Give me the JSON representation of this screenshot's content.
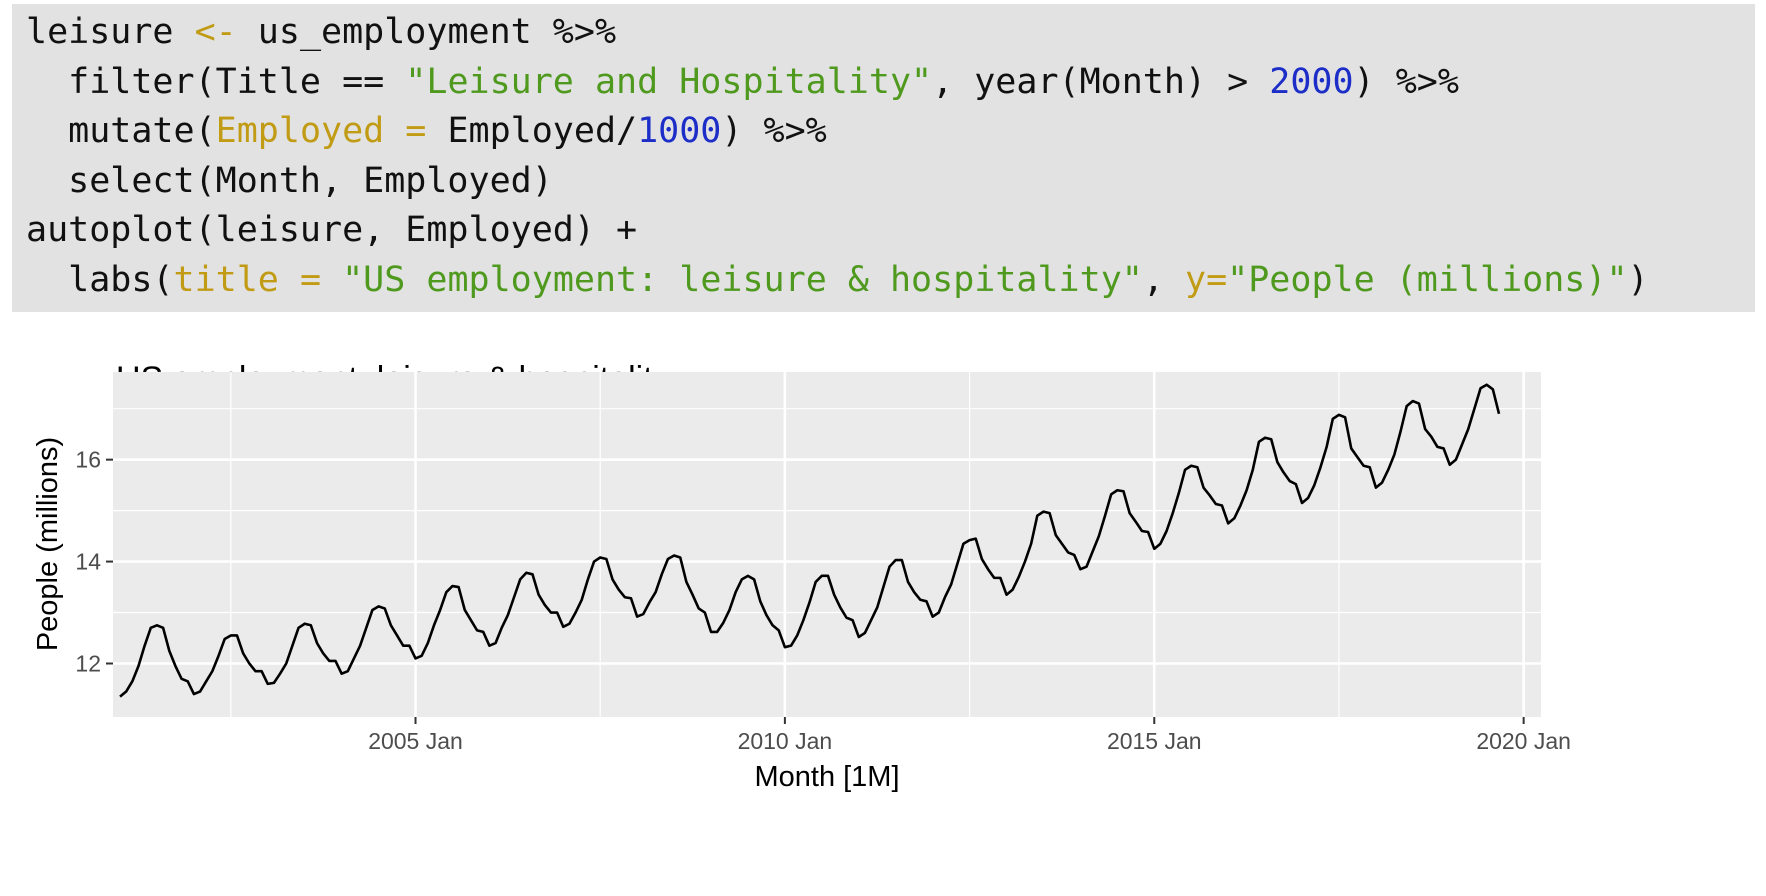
{
  "code": {
    "lines": [
      [
        {
          "t": "leisure "
        },
        {
          "t": "<-",
          "c": "assign"
        },
        {
          "t": " us_employment %>%"
        }
      ],
      [
        {
          "t": "  filter(Title == "
        },
        {
          "t": "\"Leisure and Hospitality\"",
          "c": "str"
        },
        {
          "t": ", year(Month) > "
        },
        {
          "t": "2000",
          "c": "num"
        },
        {
          "t": ") %>%"
        }
      ],
      [
        {
          "t": "  mutate("
        },
        {
          "t": "Employed =",
          "c": "arg"
        },
        {
          "t": " Employed/"
        },
        {
          "t": "1000",
          "c": "num"
        },
        {
          "t": ") %>%"
        }
      ],
      [
        {
          "t": "  select(Month, Employed)"
        }
      ],
      [
        {
          "t": "autoplot(leisure, Employed) +"
        }
      ],
      [
        {
          "t": "  labs("
        },
        {
          "t": "title =",
          "c": "arg"
        },
        {
          "t": " "
        },
        {
          "t": "\"US employment: leisure & hospitality\"",
          "c": "str"
        },
        {
          "t": ", "
        },
        {
          "t": "y=",
          "c": "arg"
        },
        {
          "t": "\"People (millions)\"",
          "c": "str"
        },
        {
          "t": ")"
        }
      ]
    ]
  },
  "colors": {
    "code_background": "#e2e2e2",
    "assign": "#c19b14",
    "string": "#4f9a1e",
    "number": "#1c2ec7",
    "panel_background": "#ebebeb",
    "grid": "#ffffff",
    "line": "#000000"
  },
  "chart_data": {
    "type": "line",
    "title": "US employment: leisure & hospitality",
    "xlabel": "Month [1M]",
    "ylabel": "People (millions)",
    "xlim": [
      2000.905,
      2020.235
    ],
    "ylim": [
      10.95,
      17.72
    ],
    "x_ticks": [
      {
        "value": 2005.0,
        "label": "2005 Jan"
      },
      {
        "value": 2010.0,
        "label": "2010 Jan"
      },
      {
        "value": 2015.0,
        "label": "2015 Jan"
      },
      {
        "value": 2020.0,
        "label": "2020 Jan"
      }
    ],
    "x_minor_ticks": [
      2002.5,
      2007.5,
      2012.5,
      2017.5
    ],
    "y_ticks": [
      {
        "value": 12,
        "label": "12"
      },
      {
        "value": 14,
        "label": "14"
      },
      {
        "value": 16,
        "label": "16"
      }
    ],
    "y_minor_ticks": [
      13,
      15,
      17
    ],
    "grid": true,
    "legend": "none",
    "series": [
      {
        "name": "Employed",
        "start": "2001 Jan",
        "frequency": "monthly",
        "values": [
          11.35,
          11.45,
          11.65,
          11.95,
          12.35,
          12.7,
          12.75,
          12.7,
          12.25,
          11.95,
          11.7,
          11.65,
          11.4,
          11.45,
          11.65,
          11.85,
          12.15,
          12.48,
          12.55,
          12.55,
          12.2,
          12.0,
          11.85,
          11.85,
          11.6,
          11.62,
          11.8,
          12.0,
          12.35,
          12.7,
          12.78,
          12.75,
          12.4,
          12.2,
          12.05,
          12.05,
          11.8,
          11.85,
          12.1,
          12.35,
          12.7,
          13.05,
          13.12,
          13.08,
          12.75,
          12.55,
          12.35,
          12.35,
          12.1,
          12.15,
          12.4,
          12.75,
          13.05,
          13.4,
          13.52,
          13.5,
          13.05,
          12.85,
          12.65,
          12.62,
          12.35,
          12.4,
          12.7,
          12.95,
          13.3,
          13.65,
          13.78,
          13.75,
          13.35,
          13.15,
          13.0,
          13.0,
          12.72,
          12.78,
          13.0,
          13.25,
          13.65,
          14.0,
          14.08,
          14.05,
          13.65,
          13.45,
          13.3,
          13.28,
          12.92,
          12.97,
          13.2,
          13.4,
          13.75,
          14.05,
          14.12,
          14.08,
          13.6,
          13.35,
          13.08,
          13.0,
          12.62,
          12.62,
          12.8,
          13.05,
          13.4,
          13.65,
          13.72,
          13.65,
          13.22,
          12.95,
          12.75,
          12.65,
          12.32,
          12.35,
          12.55,
          12.85,
          13.2,
          13.6,
          13.72,
          13.72,
          13.35,
          13.1,
          12.9,
          12.85,
          12.52,
          12.6,
          12.85,
          13.1,
          13.5,
          13.9,
          14.03,
          14.03,
          13.6,
          13.4,
          13.25,
          13.22,
          12.92,
          13.0,
          13.3,
          13.55,
          13.95,
          14.35,
          14.42,
          14.45,
          14.05,
          13.85,
          13.68,
          13.68,
          13.35,
          13.45,
          13.7,
          14.0,
          14.35,
          14.9,
          14.98,
          14.95,
          14.52,
          14.35,
          14.18,
          14.13,
          13.85,
          13.9,
          14.2,
          14.5,
          14.9,
          15.32,
          15.4,
          15.38,
          14.95,
          14.78,
          14.6,
          14.58,
          14.25,
          14.35,
          14.6,
          14.95,
          15.35,
          15.8,
          15.88,
          15.85,
          15.45,
          15.3,
          15.13,
          15.1,
          14.75,
          14.85,
          15.1,
          15.4,
          15.8,
          16.35,
          16.43,
          16.4,
          15.95,
          15.75,
          15.58,
          15.52,
          15.15,
          15.25,
          15.5,
          15.85,
          16.25,
          16.8,
          16.88,
          16.83,
          16.22,
          16.05,
          15.88,
          15.85,
          15.45,
          15.55,
          15.8,
          16.1,
          16.55,
          17.05,
          17.15,
          17.1,
          16.6,
          16.45,
          16.25,
          16.22,
          15.9,
          16.0,
          16.3,
          16.6,
          17.0,
          17.4,
          17.47,
          17.38,
          16.9
        ]
      }
    ]
  }
}
